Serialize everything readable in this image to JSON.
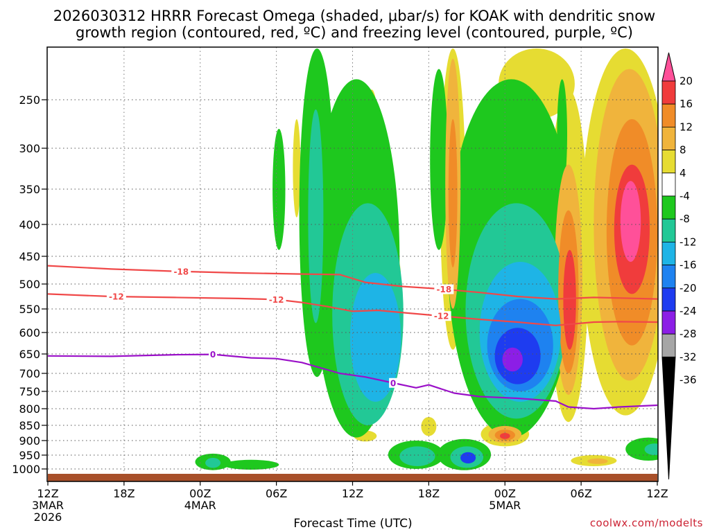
{
  "chart_data": {
    "type": "heatmap",
    "title_line1": "2026030312 HRRR Forecast Omega (shaded, μbar/s) for KOAK with dendritic snow",
    "title_line2": "growth region (contoured, red, ºC) and freezing level (contoured, purple, ºC)",
    "xlabel": "Forecast Time (UTC)",
    "credit": "coolwx.com/modelts",
    "x_ticks": [
      {
        "h": 0,
        "lines": [
          "12Z",
          "3MAR",
          "2026"
        ]
      },
      {
        "h": 6,
        "lines": [
          "18Z"
        ]
      },
      {
        "h": 12,
        "lines": [
          "00Z",
          "4MAR"
        ]
      },
      {
        "h": 18,
        "lines": [
          "06Z"
        ]
      },
      {
        "h": 24,
        "lines": [
          "12Z"
        ]
      },
      {
        "h": 30,
        "lines": [
          "18Z"
        ]
      },
      {
        "h": 36,
        "lines": [
          "00Z",
          "5MAR"
        ]
      },
      {
        "h": 42,
        "lines": [
          "06Z"
        ]
      },
      {
        "h": 48,
        "lines": [
          "12Z"
        ]
      }
    ],
    "y_ticks": [
      250,
      300,
      350,
      400,
      450,
      500,
      550,
      600,
      650,
      700,
      750,
      800,
      850,
      900,
      950,
      1000
    ],
    "colorbar": {
      "labels": [
        20,
        16,
        12,
        8,
        4,
        -4,
        -8,
        -12,
        -16,
        -20,
        -24,
        -28,
        -32,
        -36
      ],
      "colors": [
        "#ff5099",
        "#f03c3c",
        "#f08c28",
        "#f0b43c",
        "#e6dc32",
        "#ffffff",
        "#1ec81e",
        "#22c896",
        "#1eb4e6",
        "#1e82f0",
        "#1e3cf0",
        "#8c1ee6",
        "#a6a6a6"
      ]
    },
    "omega_features": [
      {
        "level": -8,
        "t": 24.3,
        "p": 560,
        "rt": 3.4,
        "rp": 330
      },
      {
        "level": -12,
        "t": 25.2,
        "p": 610,
        "rt": 2.8,
        "rp": 240
      },
      {
        "level": -16,
        "t": 25.8,
        "p": 630,
        "rt": 2.0,
        "rp": 150
      },
      {
        "level": -8,
        "t": 36.5,
        "p": 560,
        "rt": 5.0,
        "rp": 330
      },
      {
        "level": -12,
        "t": 36.9,
        "p": 600,
        "rt": 4.0,
        "rp": 230
      },
      {
        "level": -16,
        "t": 37.2,
        "p": 620,
        "rt": 3.2,
        "rp": 160
      },
      {
        "level": -20,
        "t": 37.2,
        "p": 640,
        "rt": 2.6,
        "rp": 110
      },
      {
        "level": -24,
        "t": 37.0,
        "p": 660,
        "rt": 1.8,
        "rp": 70
      },
      {
        "level": -28,
        "t": 36.6,
        "p": 665,
        "rt": 0.8,
        "rp": 30
      },
      {
        "level": -8,
        "t": 21.2,
        "p": 430,
        "rt": 1.4,
        "rp": 280
      },
      {
        "level": -12,
        "t": 21.1,
        "p": 420,
        "rt": 0.6,
        "rp": 160
      },
      {
        "level": -8,
        "t": 30.8,
        "p": 330,
        "rt": 0.7,
        "rp": 110
      },
      {
        "level": -8,
        "t": 29.0,
        "p": 950,
        "rt": 2.2,
        "rp": 50
      },
      {
        "level": -12,
        "t": 29.1,
        "p": 955,
        "rt": 1.4,
        "rp": 35
      },
      {
        "level": -8,
        "t": 32.8,
        "p": 950,
        "rt": 2.1,
        "rp": 55
      },
      {
        "level": -12,
        "t": 33.0,
        "p": 958,
        "rt": 1.3,
        "rp": 38
      },
      {
        "level": -24,
        "t": 33.1,
        "p": 960,
        "rt": 0.6,
        "rp": 20
      },
      {
        "level": -8,
        "t": 13.0,
        "p": 975,
        "rt": 1.4,
        "rp": 30
      },
      {
        "level": -12,
        "t": 13.0,
        "p": 978,
        "rt": 0.6,
        "rp": 18
      },
      {
        "level": -8,
        "t": 16.0,
        "p": 985,
        "rt": 2.2,
        "rp": 18
      },
      {
        "level": -8,
        "t": 47.3,
        "p": 930,
        "rt": 1.8,
        "rp": 40
      },
      {
        "level": -12,
        "t": 47.8,
        "p": 930,
        "rt": 0.8,
        "rp": 20
      },
      {
        "level": -8,
        "t": 18.2,
        "p": 360,
        "rt": 0.5,
        "rp": 80
      },
      {
        "level": -8,
        "t": 40.5,
        "p": 290,
        "rt": 0.4,
        "rp": 60
      },
      {
        "level": 4,
        "t": 45.5,
        "p": 500,
        "rt": 3.5,
        "rp": 320
      },
      {
        "level": 8,
        "t": 45.8,
        "p": 470,
        "rt": 2.8,
        "rp": 250
      },
      {
        "level": 12,
        "t": 46.0,
        "p": 450,
        "rt": 2.0,
        "rp": 180
      },
      {
        "level": 16,
        "t": 46.0,
        "p": 420,
        "rt": 1.4,
        "rp": 100
      },
      {
        "level": 20,
        "t": 45.9,
        "p": 400,
        "rt": 0.8,
        "rp": 60
      },
      {
        "level": 4,
        "t": 41.0,
        "p": 540,
        "rt": 1.6,
        "rp": 300
      },
      {
        "level": 8,
        "t": 41.0,
        "p": 540,
        "rt": 1.1,
        "rp": 220
      },
      {
        "level": 12,
        "t": 41.0,
        "p": 540,
        "rt": 0.8,
        "rp": 160
      },
      {
        "level": 16,
        "t": 41.1,
        "p": 540,
        "rt": 0.5,
        "rp": 100
      },
      {
        "level": 4,
        "t": 31.9,
        "p": 390,
        "rt": 1.0,
        "rp": 250
      },
      {
        "level": 8,
        "t": 31.9,
        "p": 380,
        "rt": 0.6,
        "rp": 170
      },
      {
        "level": 12,
        "t": 31.9,
        "p": 370,
        "rt": 0.35,
        "rp": 100
      },
      {
        "level": 4,
        "t": 38.5,
        "p": 200,
        "rt": 3.0,
        "rp": 70
      },
      {
        "level": 4,
        "t": 26.0,
        "p": 490,
        "rt": 1.8,
        "rp": 70
      },
      {
        "level": 4,
        "t": 25.5,
        "p": 310,
        "rt": 0.6,
        "rp": 70
      },
      {
        "level": 4,
        "t": 36.0,
        "p": 880,
        "rt": 1.9,
        "rp": 40
      },
      {
        "level": 8,
        "t": 36.0,
        "p": 880,
        "rt": 1.3,
        "rp": 28
      },
      {
        "level": 12,
        "t": 36.0,
        "p": 882,
        "rt": 0.8,
        "rp": 18
      },
      {
        "level": 16,
        "t": 36.0,
        "p": 885,
        "rt": 0.4,
        "rp": 10
      },
      {
        "level": 4,
        "t": 43.0,
        "p": 970,
        "rt": 1.8,
        "rp": 20
      },
      {
        "level": 8,
        "t": 43.3,
        "p": 972,
        "rt": 0.8,
        "rp": 10
      },
      {
        "level": 4,
        "t": 30.0,
        "p": 855,
        "rt": 0.6,
        "rp": 30
      },
      {
        "level": 4,
        "t": 25.0,
        "p": 885,
        "rt": 0.9,
        "rp": 18
      },
      {
        "level": 4,
        "t": 19.6,
        "p": 330,
        "rt": 0.3,
        "rp": 60
      }
    ],
    "contours": [
      {
        "name": "-18",
        "color": "#f04848",
        "label": "-18",
        "points": [
          [
            0,
            467
          ],
          [
            5,
            473
          ],
          [
            10,
            477
          ],
          [
            15,
            480
          ],
          [
            20,
            482
          ],
          [
            23,
            483
          ],
          [
            25,
            497
          ],
          [
            28,
            505
          ],
          [
            31,
            510
          ],
          [
            34,
            517
          ],
          [
            37,
            525
          ],
          [
            40,
            530
          ],
          [
            43,
            527
          ],
          [
            45,
            528
          ],
          [
            48,
            530
          ]
        ],
        "labels_at": [
          10.5,
          31.2
        ]
      },
      {
        "name": "-12",
        "color": "#f04848",
        "label": "-12",
        "points": [
          [
            0,
            520
          ],
          [
            5,
            525
          ],
          [
            10,
            527
          ],
          [
            15,
            529
          ],
          [
            18,
            531
          ],
          [
            20,
            537
          ],
          [
            22,
            545
          ],
          [
            24,
            555
          ],
          [
            26,
            553
          ],
          [
            28,
            558
          ],
          [
            31,
            565
          ],
          [
            34,
            572
          ],
          [
            37,
            578
          ],
          [
            40,
            585
          ],
          [
            43,
            578
          ],
          [
            45,
            577
          ],
          [
            48,
            578
          ]
        ],
        "labels_at": [
          5.4,
          18.0,
          31.0
        ]
      },
      {
        "name": "0",
        "color": "#9a10c8",
        "label": "0",
        "points": [
          [
            0,
            655
          ],
          [
            5,
            656
          ],
          [
            10,
            652
          ],
          [
            13,
            651
          ],
          [
            16,
            660
          ],
          [
            18,
            662
          ],
          [
            20,
            672
          ],
          [
            23,
            700
          ],
          [
            25,
            710
          ],
          [
            27,
            725
          ],
          [
            29,
            740
          ],
          [
            30,
            732
          ],
          [
            32,
            755
          ],
          [
            34,
            765
          ],
          [
            37,
            770
          ],
          [
            40,
            778
          ],
          [
            41,
            795
          ],
          [
            43,
            800
          ],
          [
            45,
            795
          ],
          [
            48,
            790
          ]
        ],
        "labels_at": [
          13.0,
          27.2
        ]
      }
    ],
    "ground": {
      "color": "#a8502a"
    }
  }
}
